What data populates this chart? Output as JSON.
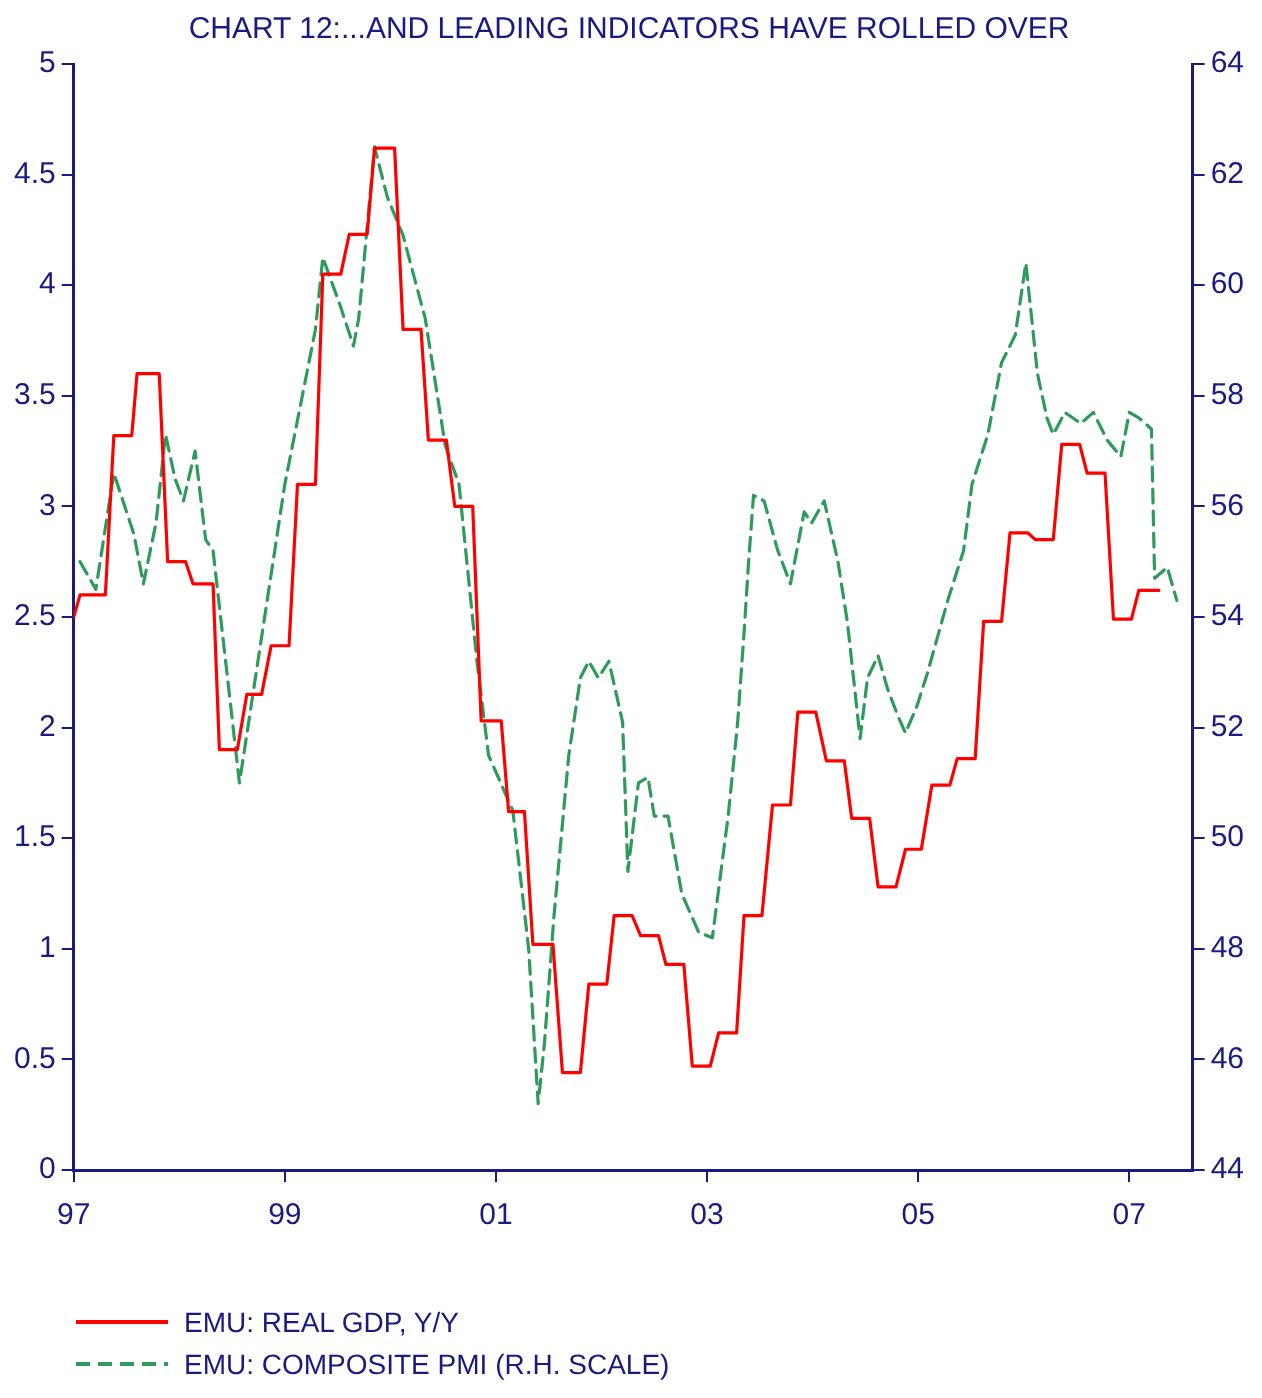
{
  "chart_data": {
    "type": "line",
    "title": "CHART 12:...AND LEADING INDICATORS HAVE ROLLED OVER",
    "xlim": [
      1997,
      2007.6
    ],
    "xticks": [
      {
        "value": 1997,
        "label": "97"
      },
      {
        "value": 1999,
        "label": "99"
      },
      {
        "value": 2001,
        "label": "01"
      },
      {
        "value": 2003,
        "label": "03"
      },
      {
        "value": 2005,
        "label": "05"
      },
      {
        "value": 2007,
        "label": "07"
      }
    ],
    "ylim": [
      0,
      5
    ],
    "yticks": [
      0,
      0.5,
      1,
      1.5,
      2,
      2.5,
      3,
      3.5,
      4,
      4.5,
      5
    ],
    "y2lim": [
      44,
      64
    ],
    "y2ticks": [
      44,
      46,
      48,
      50,
      52,
      54,
      56,
      58,
      60,
      62,
      64
    ],
    "grid": false,
    "legend": "bottom left",
    "marker": "none",
    "series": [
      {
        "name": "EMU: REAL GDP, Y/Y",
        "color": "#ff0000",
        "line_style": "solid",
        "axis": "y",
        "x": [
          1997.0,
          1997.06,
          1997.3,
          1997.38,
          1997.55,
          1997.6,
          1997.81,
          1997.89,
          1998.06,
          1998.13,
          1998.32,
          1998.38,
          1998.55,
          1998.64,
          1998.78,
          1998.87,
          1999.04,
          1999.12,
          1999.29,
          1999.36,
          1999.53,
          1999.61,
          1999.78,
          1999.85,
          2000.04,
          2000.12,
          2000.29,
          2000.36,
          2000.53,
          2000.61,
          2000.78,
          2000.86,
          2001.05,
          2001.12,
          2001.27,
          2001.35,
          2001.54,
          2001.63,
          2001.8,
          2001.88,
          2002.05,
          2002.12,
          2002.29,
          2002.37,
          2002.54,
          2002.61,
          2002.78,
          2002.86,
          2003.03,
          2003.11,
          2003.28,
          2003.35,
          2003.52,
          2003.62,
          2003.79,
          2003.86,
          2004.03,
          2004.13,
          2004.3,
          2004.37,
          2004.54,
          2004.62,
          2004.79,
          2004.88,
          2005.03,
          2005.13,
          2005.3,
          2005.37,
          2005.54,
          2005.62,
          2005.79,
          2005.87,
          2006.04,
          2006.11,
          2006.28,
          2006.36,
          2006.53,
          2006.6,
          2006.77,
          2006.85,
          2007.02,
          2007.09,
          2007.28
        ],
        "values": [
          2.5,
          2.6,
          2.6,
          3.32,
          3.32,
          3.6,
          3.6,
          2.75,
          2.75,
          2.65,
          2.65,
          1.9,
          1.9,
          2.15,
          2.15,
          2.37,
          2.37,
          3.1,
          3.1,
          4.05,
          4.05,
          4.23,
          4.23,
          4.62,
          4.62,
          3.8,
          3.8,
          3.3,
          3.3,
          3.0,
          3.0,
          2.03,
          2.03,
          1.62,
          1.62,
          1.02,
          1.02,
          0.44,
          0.44,
          0.84,
          0.84,
          1.15,
          1.15,
          1.06,
          1.06,
          0.93,
          0.93,
          0.47,
          0.47,
          0.62,
          0.62,
          1.15,
          1.15,
          1.65,
          1.65,
          2.07,
          2.07,
          1.85,
          1.85,
          1.59,
          1.59,
          1.28,
          1.28,
          1.45,
          1.45,
          1.74,
          1.74,
          1.86,
          1.86,
          2.48,
          2.48,
          2.88,
          2.88,
          2.85,
          2.85,
          3.28,
          3.28,
          3.15,
          3.15,
          2.49,
          2.49,
          2.62,
          2.62
        ]
      },
      {
        "name": "EMU: COMPOSITE PMI (R.H. SCALE)",
        "color": "#2e9a5c",
        "line_style": "dashed",
        "axis": "y2",
        "x": [
          1997.06,
          1997.21,
          1997.38,
          1997.57,
          1997.66,
          1997.78,
          1997.87,
          1997.96,
          1998.04,
          1998.15,
          1998.25,
          1998.32,
          1998.57,
          1999.0,
          1999.29,
          1999.36,
          1999.53,
          1999.65,
          1999.7,
          1999.85,
          1999.97,
          2000.12,
          2000.33,
          2000.52,
          2000.65,
          2000.82,
          2000.93,
          2001.16,
          2001.31,
          2001.4,
          2001.46,
          2001.55,
          2001.69,
          2001.8,
          2001.88,
          2001.97,
          2002.07,
          2002.2,
          2002.25,
          2002.35,
          2002.44,
          2002.5,
          2002.63,
          2002.76,
          2002.92,
          2003.05,
          2003.2,
          2003.29,
          2003.35,
          2003.39,
          2003.44,
          2003.54,
          2003.67,
          2003.79,
          2003.92,
          2003.99,
          2004.11,
          2004.24,
          2004.33,
          2004.45,
          2004.52,
          2004.62,
          2004.71,
          2004.81,
          2004.88,
          2004.99,
          2005.09,
          2005.28,
          2005.43,
          2005.51,
          2005.66,
          2005.79,
          2005.92,
          2006.02,
          2006.13,
          2006.22,
          2006.28,
          2006.39,
          2006.54,
          2006.66,
          2006.79,
          2006.92,
          2007.0,
          2007.09,
          2007.21,
          2007.24,
          2007.36,
          2007.45
        ],
        "values": [
          55.0,
          54.5,
          56.6,
          55.5,
          54.6,
          55.7,
          57.3,
          56.5,
          56.1,
          57.0,
          55.4,
          55.2,
          51.0,
          56.4,
          59.2,
          60.5,
          59.6,
          58.9,
          59.4,
          62.5,
          61.6,
          60.9,
          59.4,
          57.1,
          56.4,
          53.2,
          51.5,
          50.5,
          48.0,
          45.2,
          46.3,
          48.6,
          51.5,
          52.9,
          53.2,
          52.9,
          53.2,
          52.1,
          49.4,
          51.0,
          51.1,
          50.4,
          50.4,
          49.0,
          48.3,
          48.2,
          50.4,
          52.1,
          53.7,
          54.9,
          56.2,
          56.1,
          55.2,
          54.6,
          55.9,
          55.7,
          56.1,
          55.0,
          53.9,
          51.8,
          52.9,
          53.3,
          52.7,
          52.2,
          51.9,
          52.4,
          53.0,
          54.3,
          55.2,
          56.4,
          57.3,
          58.6,
          59.1,
          60.4,
          58.4,
          57.6,
          57.3,
          57.7,
          57.5,
          57.7,
          57.2,
          56.9,
          57.7,
          57.6,
          57.4,
          54.7,
          54.9,
          54.3
        ]
      }
    ]
  }
}
